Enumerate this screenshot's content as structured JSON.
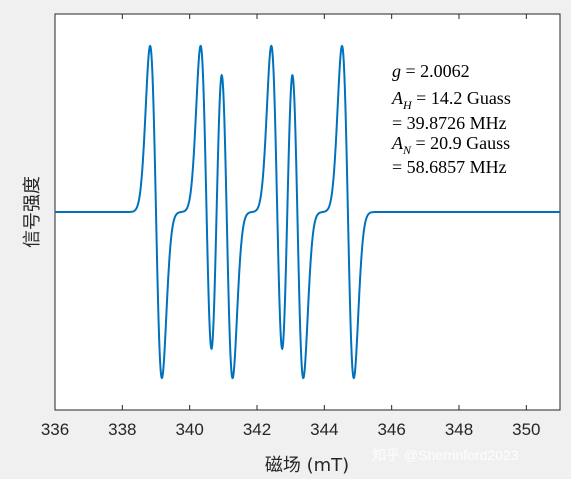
{
  "chart_data": {
    "type": "line",
    "xlabel": "磁场 (mT)",
    "ylabel": "信号强度",
    "xlim": [
      336,
      351
    ],
    "x_ticks": [
      336,
      338,
      340,
      342,
      344,
      346,
      348,
      350
    ],
    "y_ticks_shown": false,
    "grid": false,
    "series": [
      {
        "color": "#0072bd",
        "line_centers_mT": [
          339.0,
          340.5,
          341.1,
          342.6,
          343.2,
          344.7
        ],
        "peak_to_peak_mT": 0.35,
        "amplitude_relative": 1.0
      }
    ],
    "annotations": {
      "g": "g = 2.0062",
      "AH_line1": "A_H = 14.2 Guass",
      "AH_line2": "= 39.8726 MHz",
      "AN_line1": "A_N = 20.9 Gauss",
      "AN_line2": "= 58.6857 MHz"
    }
  },
  "watermark": "知乎 @Sherrinford2023",
  "colors": {
    "background": "#f0f0f0",
    "axes_background": "#ffffff",
    "line": "#0072bd"
  }
}
